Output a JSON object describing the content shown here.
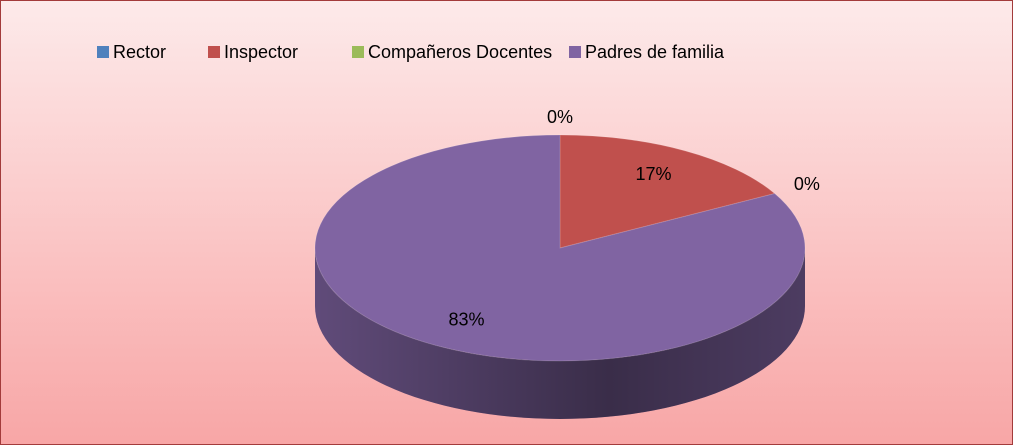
{
  "chart_data": {
    "type": "pie",
    "categories": [
      "Rector",
      "Inspector",
      "Compañeros Docentes",
      "Padres de familia"
    ],
    "values": [
      0,
      17,
      0,
      83
    ],
    "value_labels": [
      "0%",
      "17%",
      "0%",
      "83%"
    ],
    "colors": [
      "#4f81bd",
      "#c0504d",
      "#9bbb59",
      "#8064a2"
    ],
    "legend": "top"
  }
}
